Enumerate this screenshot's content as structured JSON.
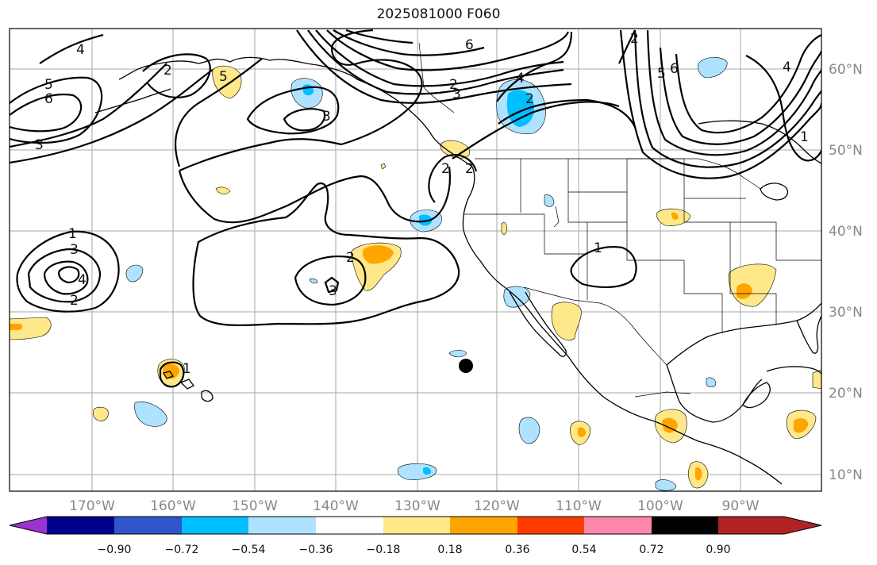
{
  "title": "2025081000 F060",
  "map": {
    "lon_labels": [
      "170°W",
      "160°W",
      "150°W",
      "140°W",
      "130°W",
      "120°W",
      "110°W",
      "100°W",
      "90°W"
    ],
    "lat_labels": [
      "60°N",
      "50°N",
      "40°N",
      "30°N",
      "20°N",
      "10°N"
    ],
    "contour_labels": [
      "4",
      "5",
      "6",
      "3",
      "2",
      "2",
      "2",
      "3",
      "6",
      "5",
      "3",
      "2",
      "2",
      "4",
      "2",
      "5",
      "6",
      "4",
      "1",
      "2",
      "1",
      "3",
      "4",
      "2",
      "2",
      "3",
      "1",
      "1"
    ],
    "marker": "black-dot-storm-position"
  },
  "colorbar": {
    "ticks": [
      "−0.90",
      "−0.72",
      "−0.54",
      "−0.36",
      "−0.18",
      "0.18",
      "0.36",
      "0.54",
      "0.72",
      "0.90"
    ],
    "colors": [
      "#9b33d1",
      "#00008b",
      "#3155cc",
      "#00bfff",
      "#aee2ff",
      "#ffffff",
      "#ffe88a",
      "#ffa500",
      "#ff3c00",
      "#b22222",
      "#ff88aa"
    ]
  }
}
